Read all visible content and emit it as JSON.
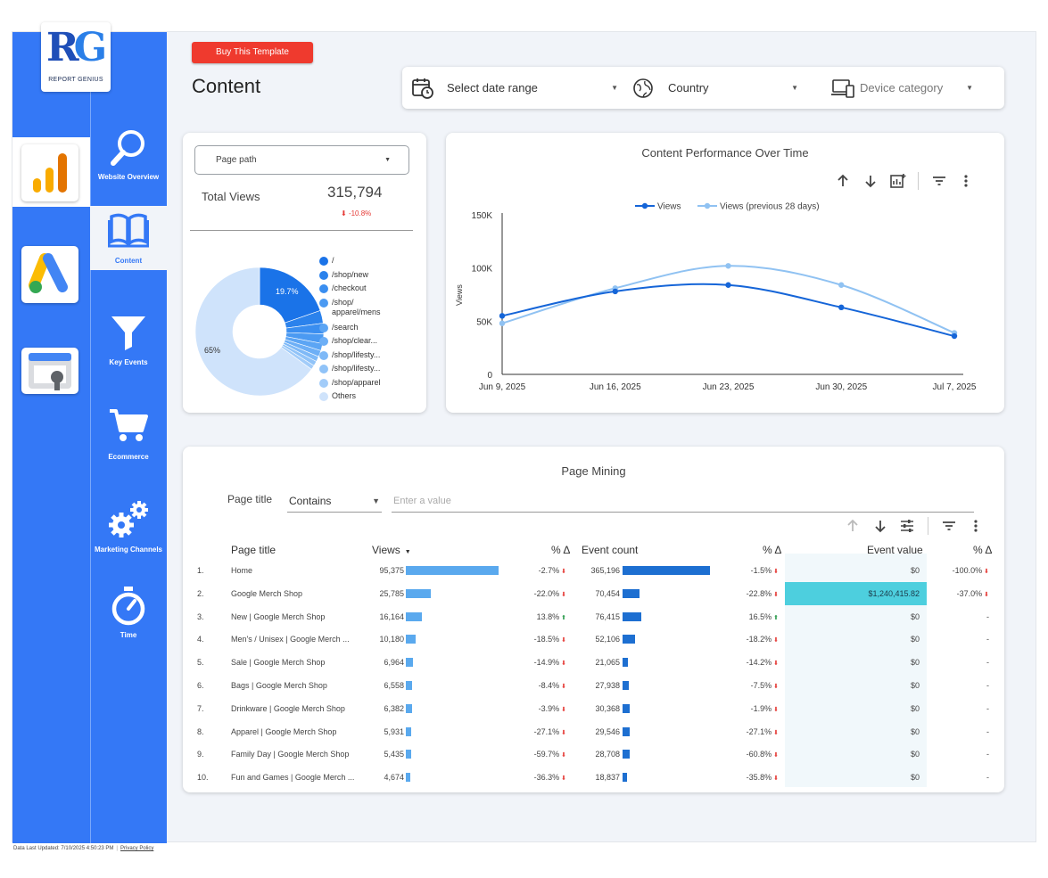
{
  "sidebar": {
    "logo": {
      "monogram": "RG",
      "text": "REPORT GENIUS"
    },
    "rail": [
      {
        "icon": "analytics-icon",
        "active": true
      },
      {
        "icon": "google-ads-icon",
        "active": false
      },
      {
        "icon": "search-console-icon",
        "active": false
      }
    ],
    "nav": [
      {
        "label": "Website Overview",
        "icon": "search-icon"
      },
      {
        "label": "Content",
        "icon": "book-icon",
        "active": true
      },
      {
        "label": "Key Events",
        "icon": "funnel-icon"
      },
      {
        "label": "Ecommerce",
        "icon": "cart-icon"
      },
      {
        "label": "Marketing Channels",
        "icon": "gears-icon"
      },
      {
        "label": "Time",
        "icon": "stopwatch-icon"
      }
    ]
  },
  "header": {
    "buy_button": "Buy This Template",
    "title": "Content",
    "filters": {
      "date": "Select date range",
      "country": "Country",
      "device": "Device category"
    }
  },
  "summary": {
    "select_label": "Page path",
    "total_label": "Total Views",
    "total_value": "315,794",
    "delta": "-10.8%",
    "donut": {
      "label_big": "19.7%",
      "label_small": "65%",
      "slices": [
        {
          "label": "/",
          "pct": 19.7,
          "color": "#1a73e8"
        },
        {
          "label": "/shop/new",
          "pct": 3.2,
          "color": "#2b82ec"
        },
        {
          "label": "/checkout",
          "pct": 2.7,
          "color": "#3a8ef0"
        },
        {
          "label": "/shop/\napparel/mens",
          "pct": 2.4,
          "color": "#4b9af2"
        },
        {
          "label": "/search",
          "pct": 1.8,
          "color": "#5ca5f4"
        },
        {
          "label": "/shop/clear...",
          "pct": 1.6,
          "color": "#6daff6"
        },
        {
          "label": "/shop/lifesty...",
          "pct": 1.3,
          "color": "#7eb9f7"
        },
        {
          "label": "/shop/lifesty...",
          "pct": 1.2,
          "color": "#90c3f8"
        },
        {
          "label": "/shop/apparel",
          "pct": 1.1,
          "color": "#a2ccf9"
        },
        {
          "label": "Others",
          "pct": 65,
          "color": "#cfe3fb"
        }
      ]
    }
  },
  "chart_data": {
    "type": "line",
    "title": "Content Performance Over Time",
    "ylabel": "Views",
    "ylim": [
      0,
      150000
    ],
    "yticks": [
      "0",
      "50K",
      "100K",
      "150K"
    ],
    "x": [
      "Jun 9, 2025",
      "Jun 16, 2025",
      "Jun 23, 2025",
      "Jun 30, 2025",
      "Jul 7, 2025"
    ],
    "series": [
      {
        "name": "Views",
        "values": [
          55000,
          78000,
          84000,
          63000,
          36000
        ],
        "color": "#1565d8"
      },
      {
        "name": "Views (previous 28 days)",
        "values": [
          48000,
          81000,
          102000,
          84000,
          39000
        ],
        "color": "#90c2f2"
      }
    ],
    "legend": "top"
  },
  "page_mining": {
    "title": "Page Mining",
    "filter_label": "Page title",
    "operator": "Contains",
    "value_placeholder": "Enter a value",
    "headers": {
      "page": "Page title",
      "views": "Views",
      "pct1": "% Δ",
      "events": "Event count",
      "pct2": "% Δ",
      "event_value": "Event value",
      "pct3": "% Δ"
    },
    "rows": [
      {
        "n": "1.",
        "title": "Home",
        "views": "95,375",
        "views_num": 95375,
        "vd": "-2.7%",
        "vdir": "down",
        "events": "365,196",
        "events_num": 365196,
        "ed": "-1.5%",
        "edir": "down",
        "ev": "$0",
        "evd": "-100.0%",
        "evdir": "down"
      },
      {
        "n": "2.",
        "title": "Google Merch Shop",
        "views": "25,785",
        "views_num": 25785,
        "vd": "-22.0%",
        "vdir": "down",
        "events": "70,454",
        "events_num": 70454,
        "ed": "-22.8%",
        "edir": "down",
        "ev": "$1,240,415.82",
        "highlight": true,
        "evd": "-37.0%",
        "evdir": "down"
      },
      {
        "n": "3.",
        "title": "New | Google Merch Shop",
        "views": "16,164",
        "views_num": 16164,
        "vd": "13.8%",
        "vdir": "up",
        "events": "76,415",
        "events_num": 76415,
        "ed": "16.5%",
        "edir": "up",
        "ev": "$0",
        "evd": "-",
        "evdir": ""
      },
      {
        "n": "4.",
        "title": "Men's / Unisex | Google Merch ...",
        "views": "10,180",
        "views_num": 10180,
        "vd": "-18.5%",
        "vdir": "down",
        "events": "52,106",
        "events_num": 52106,
        "ed": "-18.2%",
        "edir": "down",
        "ev": "$0",
        "evd": "-",
        "evdir": ""
      },
      {
        "n": "5.",
        "title": "Sale | Google Merch Shop",
        "views": "6,964",
        "views_num": 6964,
        "vd": "-14.9%",
        "vdir": "down",
        "events": "21,065",
        "events_num": 21065,
        "ed": "-14.2%",
        "edir": "down",
        "ev": "$0",
        "evd": "-",
        "evdir": ""
      },
      {
        "n": "6.",
        "title": "Bags | Google Merch Shop",
        "views": "6,558",
        "views_num": 6558,
        "vd": "-8.4%",
        "vdir": "down",
        "events": "27,938",
        "events_num": 27938,
        "ed": "-7.5%",
        "edir": "down",
        "ev": "$0",
        "evd": "-",
        "evdir": ""
      },
      {
        "n": "7.",
        "title": "Drinkware | Google Merch Shop",
        "views": "6,382",
        "views_num": 6382,
        "vd": "-3.9%",
        "vdir": "down",
        "events": "30,368",
        "events_num": 30368,
        "ed": "-1.9%",
        "edir": "down",
        "ev": "$0",
        "evd": "-",
        "evdir": ""
      },
      {
        "n": "8.",
        "title": "Apparel | Google Merch Shop",
        "views": "5,931",
        "views_num": 5931,
        "vd": "-27.1%",
        "vdir": "down",
        "events": "29,546",
        "events_num": 29546,
        "ed": "-27.1%",
        "edir": "down",
        "ev": "$0",
        "evd": "-",
        "evdir": ""
      },
      {
        "n": "9.",
        "title": "Family Day | Google Merch Shop",
        "views": "5,435",
        "views_num": 5435,
        "vd": "-59.7%",
        "vdir": "down",
        "events": "28,708",
        "events_num": 28708,
        "ed": "-60.8%",
        "edir": "down",
        "ev": "$0",
        "evd": "-",
        "evdir": ""
      },
      {
        "n": "10.",
        "title": "Fun and Games | Google Merch ...",
        "views": "4,674",
        "views_num": 4674,
        "vd": "-36.3%",
        "vdir": "down",
        "events": "18,837",
        "events_num": 18837,
        "ed": "-35.8%",
        "edir": "down",
        "ev": "$0",
        "evd": "-",
        "evdir": ""
      }
    ]
  },
  "footer": {
    "updated": "Data Last Updated: 7/10/2025 4:50:23 PM",
    "privacy": "Privacy Policy"
  }
}
